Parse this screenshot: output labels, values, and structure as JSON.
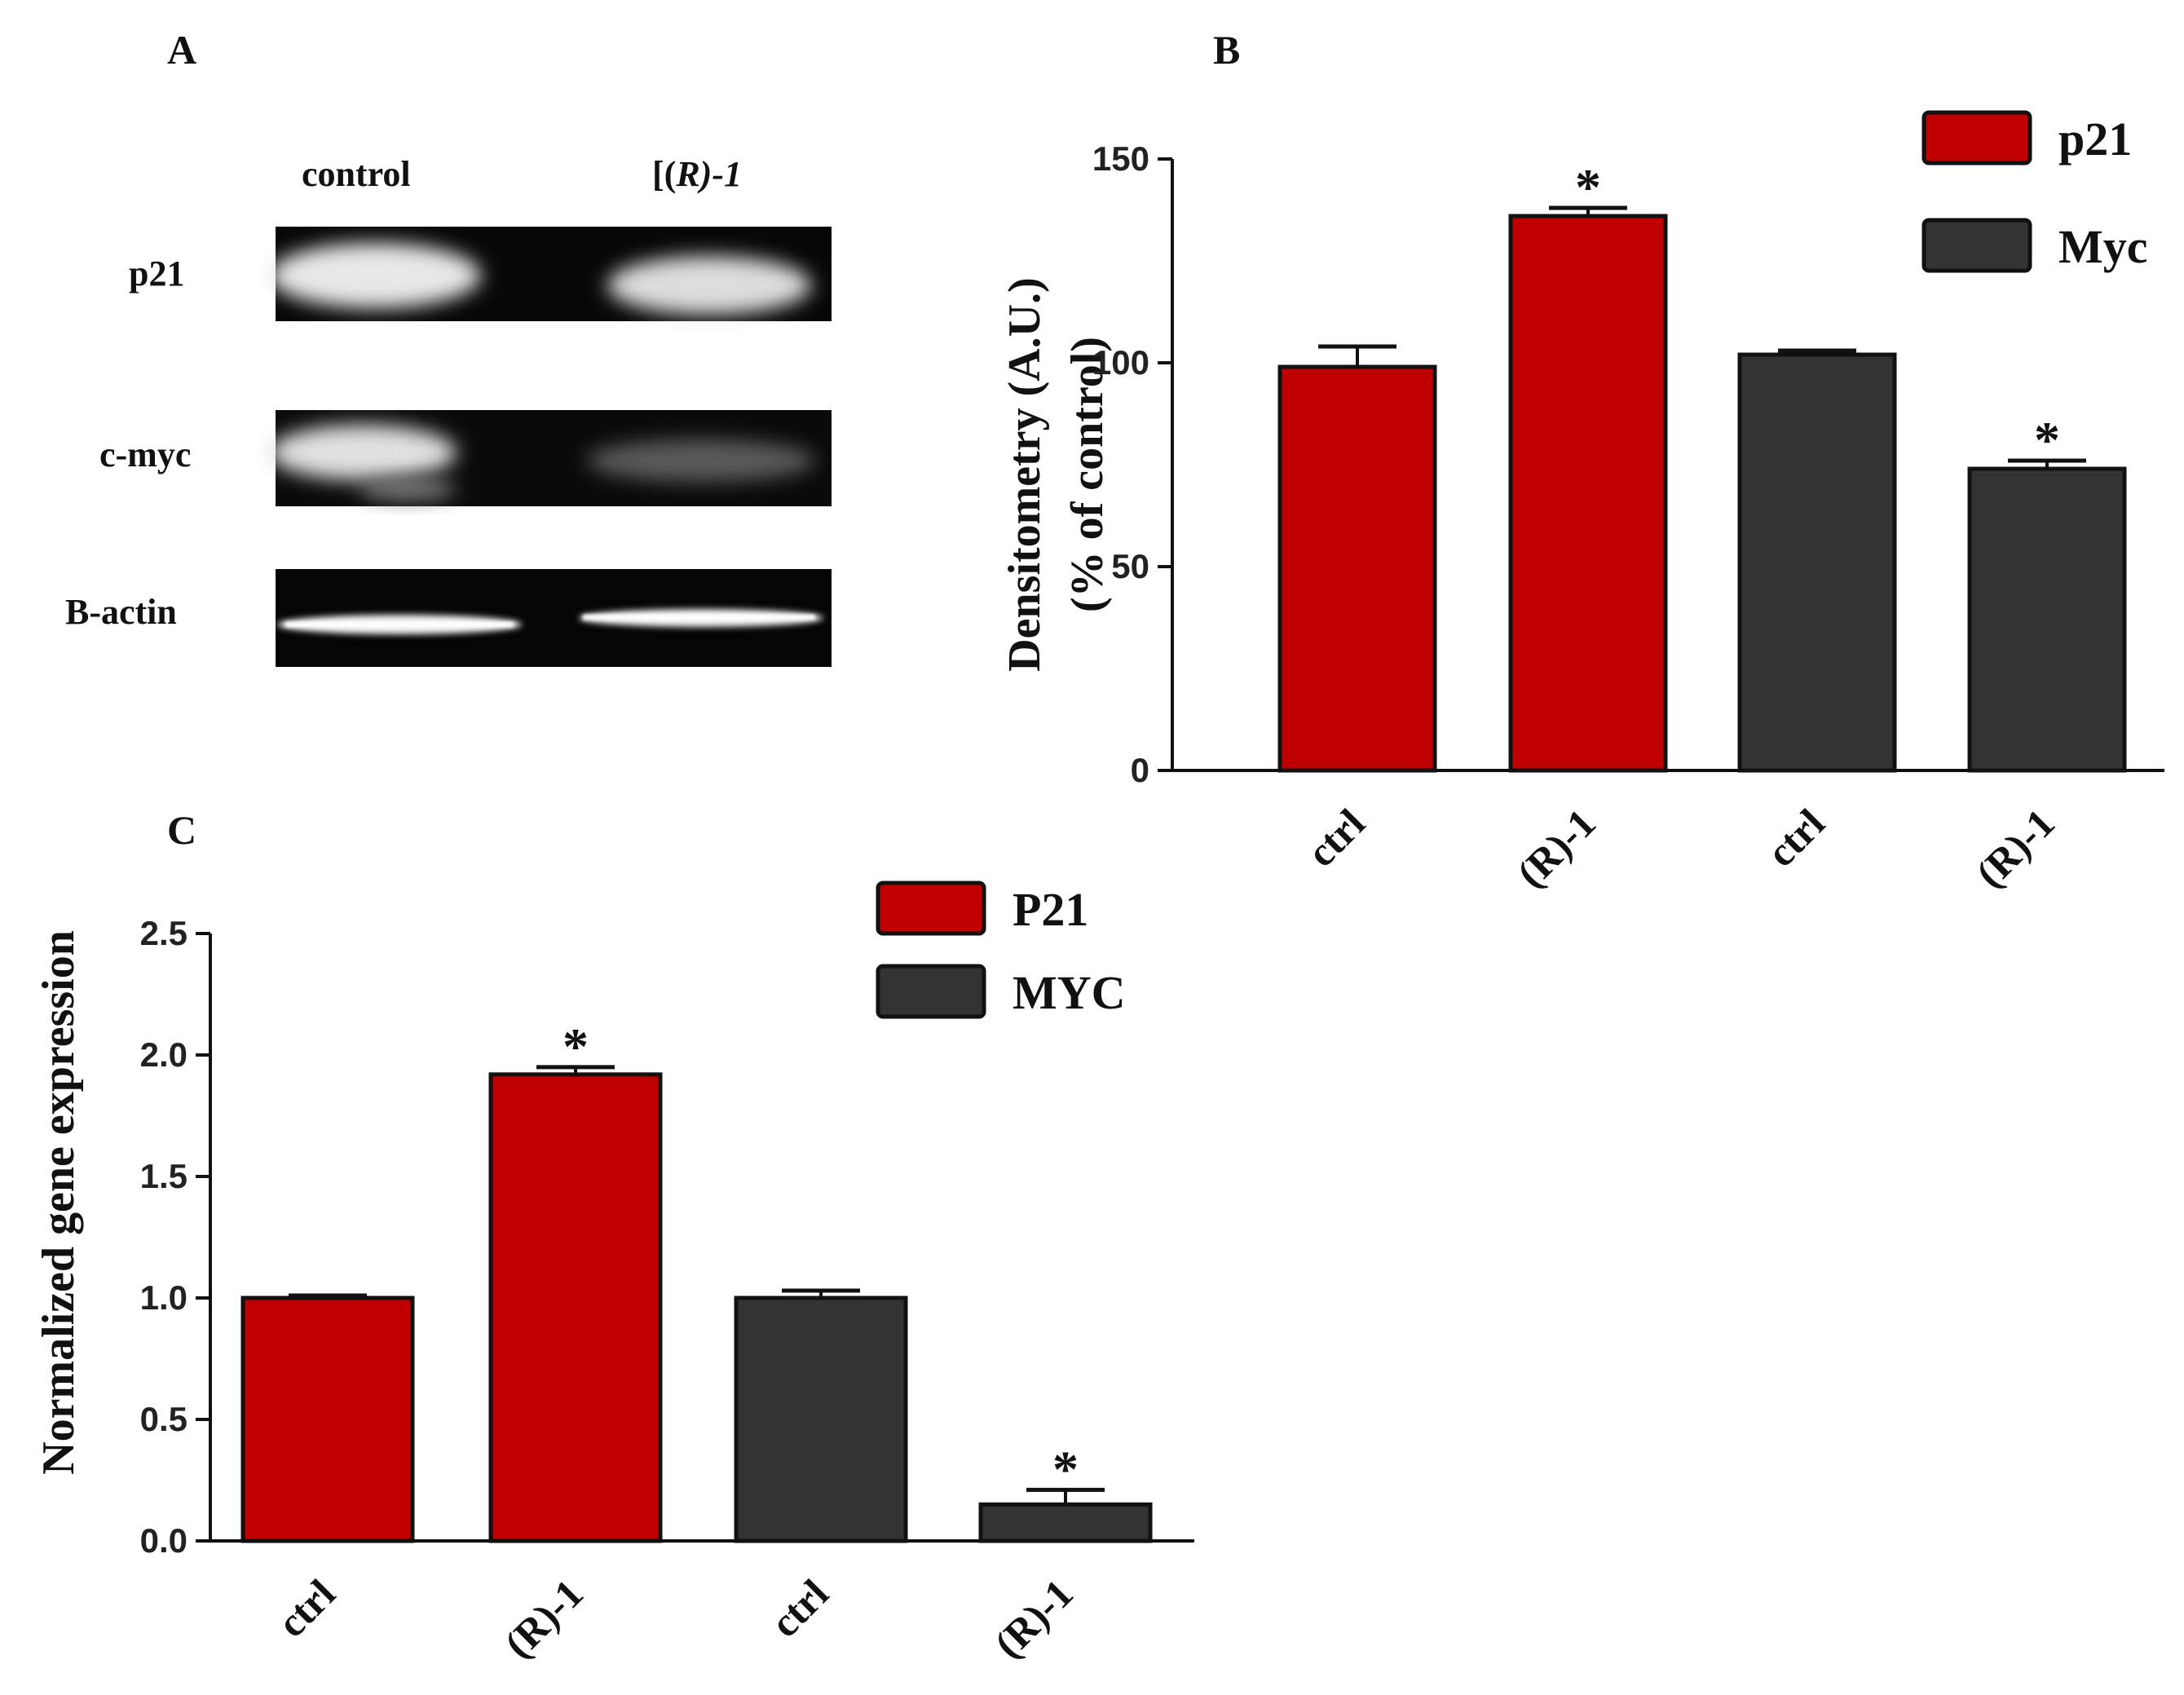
{
  "panels": {
    "a": "A",
    "b": "B",
    "c": "C"
  },
  "blot": {
    "col_control": "control",
    "col_treated_prefix": "[(",
    "col_treated_r": "R",
    "col_treated_suffix": ")-1",
    "rows": [
      "p21",
      "c-myc",
      "B-actin"
    ]
  },
  "colors": {
    "p21": "#c00000",
    "myc": "#333333"
  },
  "chart_data": [
    {
      "id": "B",
      "type": "bar",
      "title": "",
      "xlabel": "",
      "ylabel_line1": "Densitometry (A.U.)",
      "ylabel_line2": "(% of control)",
      "ylim": [
        0,
        150
      ],
      "yticks": [
        "0",
        "50",
        "100",
        "150"
      ],
      "categories": [
        "ctrl",
        "(R)-1",
        "ctrl",
        "(R)-1"
      ],
      "values": [
        99,
        136,
        102,
        74
      ],
      "errors": [
        5,
        2,
        1,
        2
      ],
      "series_of_bar": [
        0,
        0,
        1,
        1
      ],
      "significance": [
        "",
        "*",
        "",
        "*"
      ],
      "legend": [
        "p21",
        "Myc"
      ],
      "legend_position": "top-right"
    },
    {
      "id": "C",
      "type": "bar",
      "title": "",
      "xlabel": "",
      "ylabel": "Normalized gene expression",
      "ylim": [
        0,
        2.5
      ],
      "yticks": [
        "0.0",
        "0.5",
        "1.0",
        "1.5",
        "2.0",
        "2.5"
      ],
      "categories": [
        "ctrl",
        "(R)-1",
        "ctrl",
        "(R)-1"
      ],
      "values": [
        1.0,
        1.92,
        1.0,
        0.15
      ],
      "errors": [
        0.01,
        0.03,
        0.03,
        0.06
      ],
      "series_of_bar": [
        0,
        0,
        1,
        1
      ],
      "significance": [
        "",
        "*",
        "",
        "*"
      ],
      "legend": [
        "P21",
        "MYC"
      ],
      "legend_position": "top-right"
    }
  ]
}
